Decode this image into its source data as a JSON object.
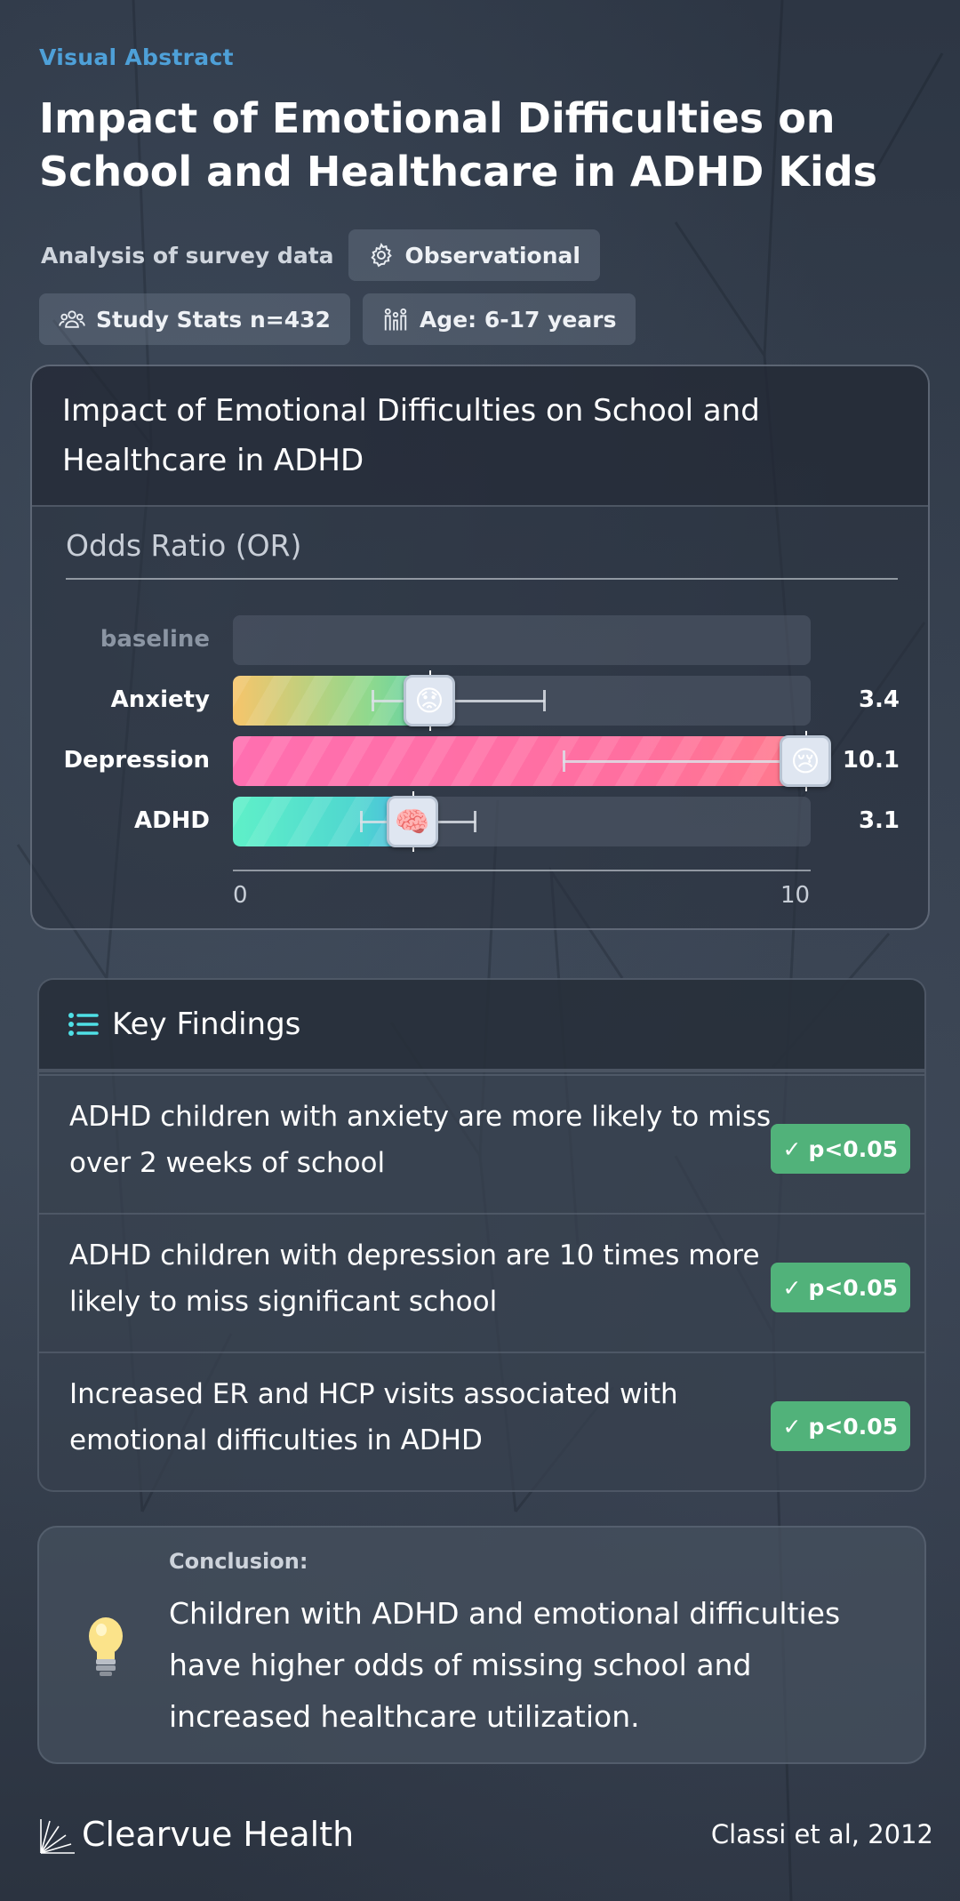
{
  "header": {
    "eyebrow": "Visual Abstract",
    "title": "Impact of Emotional Difficulties on School and Healthcare in ADHD Kids"
  },
  "meta": {
    "analysis": "Analysis of survey data",
    "design_chip": "Observational",
    "stats_chip": "Study Stats n=432",
    "age_chip": "Age: 6-17 years"
  },
  "chart_card": {
    "title": "Impact of Emotional Difficulties on School and Healthcare in ADHD",
    "axis_title": "Odds Ratio (OR)"
  },
  "chart_data": {
    "type": "bar",
    "orientation": "horizontal",
    "xlim": [
      0,
      10
    ],
    "x_ticks": [
      "0",
      "10"
    ],
    "categories": [
      "baseline",
      "Anxiety",
      "Depression",
      "ADHD"
    ],
    "values": [
      null,
      3.4,
      10.1,
      3.1
    ],
    "value_labels": [
      "",
      "3.4",
      "10.1",
      "3.1"
    ],
    "ci_low": [
      null,
      2.4,
      5.7,
      2.2
    ],
    "ci_high": [
      null,
      5.4,
      10.1,
      4.2
    ],
    "markers": [
      "",
      "worried-face",
      "crying-face",
      "brain"
    ],
    "colors": [
      "",
      "#f7c56b",
      "#ff6fb0",
      "#5ff0c8"
    ],
    "grid": false
  },
  "findings": {
    "title": "Key Findings",
    "items": [
      {
        "text": "ADHD children with anxiety are more likely to miss over 2 weeks of school",
        "badge": "p<0.05"
      },
      {
        "text": "ADHD children with depression are 10 times more likely to miss significant school",
        "badge": "p<0.05"
      },
      {
        "text": "Increased ER and HCP visits associated with emotional difficulties in ADHD",
        "badge": "p<0.05"
      }
    ]
  },
  "conclusion": {
    "label": "Conclusion:",
    "text": "Children with ADHD and emotional difficulties have higher odds of missing school and increased healthcare utilization."
  },
  "footer": {
    "brand": "Clearvue Health",
    "citation": "Classi et al, 2012"
  }
}
